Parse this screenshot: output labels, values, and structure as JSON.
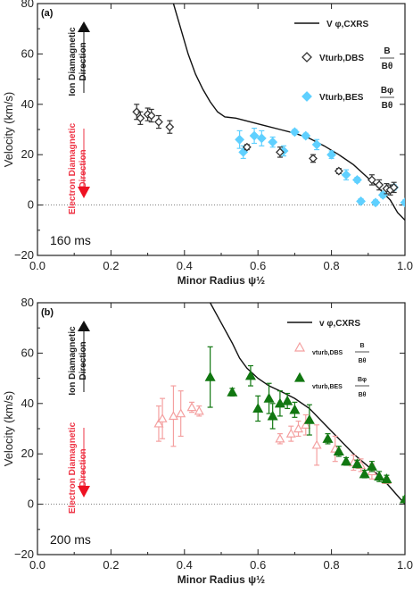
{
  "chart_data": [
    {
      "type": "scatter",
      "panel_label": "(a)",
      "time_label": "160 ms",
      "xlabel": "Minor Radius ψ½",
      "ylabel": "Velocity (km/s)",
      "xlim": [
        0.0,
        1.0
      ],
      "ylim": [
        -20,
        80
      ],
      "xticks": [
        "0.0",
        "0.2",
        "0.4",
        "0.6",
        "0.8",
        "1.0"
      ],
      "yticks": [
        "−20",
        "0",
        "20",
        "40",
        "60",
        "80"
      ],
      "ion_direction": [
        "Ion Diamagnetic",
        "Direction"
      ],
      "electron_direction": [
        "Electron Diamagnetic",
        "Direction"
      ],
      "legend": {
        "cxrs": "V φ,CXRS",
        "dbs": "Vturb,DBS",
        "dbs_num": "B",
        "dbs_den": "Bθ",
        "bes": "Vturb,BES",
        "bes_num": "Bφ",
        "bes_den": "Bθ"
      },
      "colors": {
        "cxrs": "#111111",
        "dbs": "#333333",
        "bes": "#5fd0ff"
      },
      "line_cxrs": {
        "x": [
          0.37,
          0.39,
          0.41,
          0.43,
          0.45,
          0.47,
          0.49,
          0.51,
          0.54,
          0.58,
          0.62,
          0.66,
          0.7,
          0.74,
          0.78,
          0.82,
          0.86,
          0.89,
          0.92,
          0.94,
          0.96,
          0.98,
          1.0
        ],
        "y": [
          80,
          70,
          60,
          52,
          46,
          41,
          37,
          35,
          34.5,
          33,
          31.5,
          30,
          28.5,
          26.5,
          23.5,
          20,
          16,
          12,
          8,
          5,
          2,
          -3,
          -6
        ]
      },
      "dbs": [
        {
          "x": 0.27,
          "y": 37,
          "err": 3
        },
        {
          "x": 0.28,
          "y": 34.5,
          "err": 2.5
        },
        {
          "x": 0.3,
          "y": 36,
          "err": 2.5
        },
        {
          "x": 0.31,
          "y": 35.5,
          "err": 2.5
        },
        {
          "x": 0.33,
          "y": 33,
          "err": 2.5
        },
        {
          "x": 0.36,
          "y": 31,
          "err": 2.5
        },
        {
          "x": 0.57,
          "y": 23,
          "err": 1
        },
        {
          "x": 0.66,
          "y": 21,
          "err": 2
        },
        {
          "x": 0.75,
          "y": 18.5,
          "err": 1.5
        },
        {
          "x": 0.82,
          "y": 13.5,
          "err": 1
        },
        {
          "x": 0.91,
          "y": 10,
          "err": 2
        },
        {
          "x": 0.93,
          "y": 8,
          "err": 2
        },
        {
          "x": 0.95,
          "y": 6.5,
          "err": 2
        },
        {
          "x": 0.96,
          "y": 6,
          "err": 2
        },
        {
          "x": 0.97,
          "y": 7,
          "err": 2
        }
      ],
      "bes": [
        {
          "x": 0.55,
          "y": 26,
          "err": 3.5
        },
        {
          "x": 0.56,
          "y": 21,
          "err": 2.5
        },
        {
          "x": 0.59,
          "y": 27.5,
          "err": 3
        },
        {
          "x": 0.61,
          "y": 26.5,
          "err": 3
        },
        {
          "x": 0.64,
          "y": 25,
          "err": 2
        },
        {
          "x": 0.67,
          "y": 21.5,
          "err": 2
        },
        {
          "x": 0.7,
          "y": 29,
          "err": 1
        },
        {
          "x": 0.73,
          "y": 27.5,
          "err": 1
        },
        {
          "x": 0.76,
          "y": 24,
          "err": 2
        },
        {
          "x": 0.8,
          "y": 20,
          "err": 1.5
        },
        {
          "x": 0.84,
          "y": 12,
          "err": 2
        },
        {
          "x": 0.87,
          "y": 10,
          "err": 1
        },
        {
          "x": 0.88,
          "y": 1.5,
          "err": 1
        },
        {
          "x": 0.92,
          "y": 1,
          "err": 1
        },
        {
          "x": 0.94,
          "y": 4,
          "err": 1
        },
        {
          "x": 0.97,
          "y": 7,
          "err": 1
        },
        {
          "x": 1.0,
          "y": 1,
          "err": 1
        }
      ]
    },
    {
      "type": "scatter",
      "panel_label": "(b)",
      "time_label": "200 ms",
      "xlabel": "Minor Radius ψ½",
      "ylabel": "Velocity (km/s)",
      "xlim": [
        0.0,
        1.0
      ],
      "ylim": [
        -20,
        80
      ],
      "xticks": [
        "0.0",
        "0.2",
        "0.4",
        "0.6",
        "0.8",
        "1.0"
      ],
      "yticks": [
        "−20",
        "0",
        "20",
        "40",
        "60",
        "80"
      ],
      "ion_direction": [
        "Ion Diamagnetic",
        "Direction"
      ],
      "electron_direction": [
        "Electron Diamagnetic",
        "Direction"
      ],
      "legend": {
        "cxrs": "v φ,CXRS",
        "dbs": "vturb,DBS",
        "dbs_num": "B",
        "dbs_den": "Bθ",
        "bes": "vturb,BES",
        "bes_num": "Bφ",
        "bes_den": "Bθ"
      },
      "colors": {
        "cxrs": "#111111",
        "dbs": "#f4a0a0",
        "bes": "#117711"
      },
      "line_cxrs": {
        "x": [
          0.47,
          0.5,
          0.53,
          0.55,
          0.57,
          0.6,
          0.63,
          0.66,
          0.7,
          0.74,
          0.78,
          0.82,
          0.86,
          0.9,
          0.94,
          0.97,
          1.0
        ],
        "y": [
          80,
          72,
          64,
          58,
          54,
          50,
          47,
          45,
          42,
          38,
          32,
          26,
          20,
          15,
          10,
          5,
          0
        ]
      },
      "dbs": [
        {
          "x": 0.33,
          "y": 32,
          "err": 7
        },
        {
          "x": 0.34,
          "y": 34,
          "err": 8
        },
        {
          "x": 0.37,
          "y": 35,
          "err": 12
        },
        {
          "x": 0.39,
          "y": 36,
          "err": 9
        },
        {
          "x": 0.42,
          "y": 38.5,
          "err": 2
        },
        {
          "x": 0.44,
          "y": 37,
          "err": 2
        },
        {
          "x": 0.66,
          "y": 26,
          "err": 2
        },
        {
          "x": 0.69,
          "y": 28,
          "err": 3
        },
        {
          "x": 0.71,
          "y": 30,
          "err": 3
        },
        {
          "x": 0.73,
          "y": 31.5,
          "err": 4
        },
        {
          "x": 0.76,
          "y": 23.5,
          "err": 8
        },
        {
          "x": 0.81,
          "y": 22,
          "err": 5
        },
        {
          "x": 0.86,
          "y": 16.5,
          "err": 3
        },
        {
          "x": 0.88,
          "y": 15.5,
          "err": 2.5
        },
        {
          "x": 0.91,
          "y": 13,
          "err": 3
        },
        {
          "x": 0.95,
          "y": 9.5,
          "err": 1
        }
      ],
      "bes": [
        {
          "x": 0.47,
          "y": 50.5,
          "err": 12
        },
        {
          "x": 0.53,
          "y": 44.5,
          "err": 1.5
        },
        {
          "x": 0.58,
          "y": 51,
          "err": 4
        },
        {
          "x": 0.6,
          "y": 38,
          "err": 5
        },
        {
          "x": 0.63,
          "y": 42,
          "err": 6
        },
        {
          "x": 0.64,
          "y": 35,
          "err": 5
        },
        {
          "x": 0.66,
          "y": 40,
          "err": 5
        },
        {
          "x": 0.68,
          "y": 41,
          "err": 3
        },
        {
          "x": 0.7,
          "y": 37.5,
          "err": 3
        },
        {
          "x": 0.74,
          "y": 33.5,
          "err": 6
        },
        {
          "x": 0.79,
          "y": 26,
          "err": 2
        },
        {
          "x": 0.82,
          "y": 21,
          "err": 2
        },
        {
          "x": 0.84,
          "y": 17,
          "err": 1.5
        },
        {
          "x": 0.87,
          "y": 16,
          "err": 1.5
        },
        {
          "x": 0.89,
          "y": 12,
          "err": 1.5
        },
        {
          "x": 0.91,
          "y": 15,
          "err": 2
        },
        {
          "x": 0.93,
          "y": 11,
          "err": 2
        },
        {
          "x": 0.95,
          "y": 10,
          "err": 1.5
        },
        {
          "x": 1.0,
          "y": 2,
          "err": 1
        }
      ]
    }
  ]
}
